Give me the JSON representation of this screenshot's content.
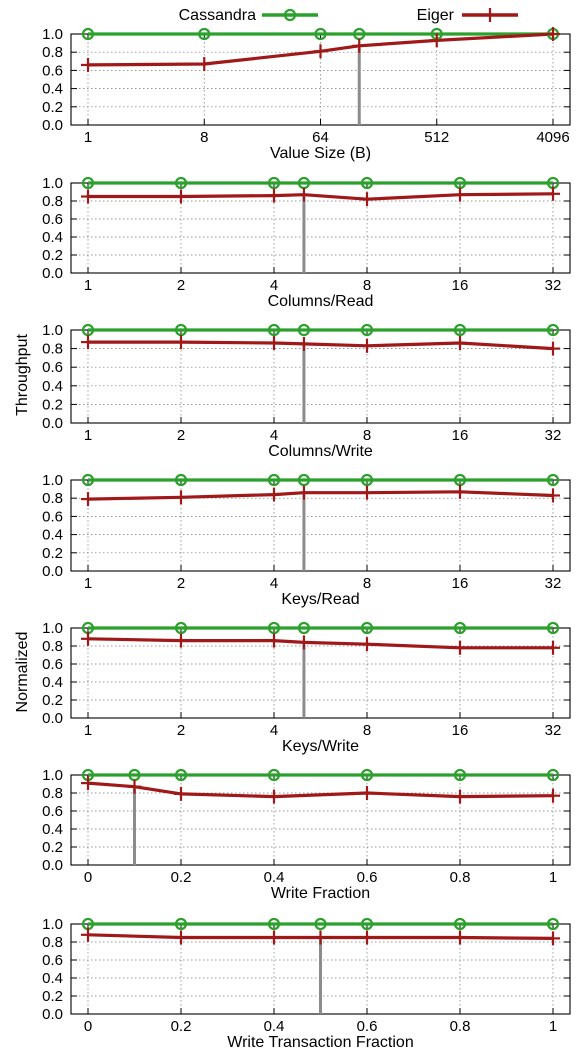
{
  "legend": {
    "cassandra": "Cassandra",
    "eiger": "Eiger"
  },
  "ylabel_parts": [
    "Normalized",
    "Throughput"
  ],
  "colors": {
    "cassandra": "#2ca02c",
    "eiger": "#a01818",
    "marker_line": "#8c8c8c"
  },
  "chart_data": [
    {
      "type": "line",
      "xscale": "log2",
      "xlabel": "Value Size (B)",
      "x": [
        1,
        8,
        64,
        128,
        512,
        4096
      ],
      "xticks": [
        "1",
        "8",
        "64",
        "512",
        "4096"
      ],
      "xtick_values": [
        1,
        8,
        64,
        512,
        4096
      ],
      "xlim": [
        1,
        4096
      ],
      "ylim": [
        0,
        1
      ],
      "yticks": [
        "0.0",
        "0.2",
        "0.4",
        "0.6",
        "0.8",
        "1.0"
      ],
      "grid": true,
      "series": [
        {
          "name": "Cassandra",
          "values": [
            1.0,
            1.0,
            1.0,
            1.0,
            1.0,
            1.0
          ]
        },
        {
          "name": "Eiger",
          "values": [
            0.66,
            0.67,
            0.81,
            0.87,
            0.93,
            1.0
          ]
        }
      ],
      "vline": 128
    },
    {
      "type": "line",
      "xscale": "log2",
      "xlabel": "Columns/Read",
      "x": [
        1,
        2,
        4,
        5,
        8,
        16,
        32
      ],
      "xticks": [
        "1",
        "2",
        "4",
        "8",
        "16",
        "32"
      ],
      "xtick_values": [
        1,
        2,
        4,
        8,
        16,
        32
      ],
      "xlim": [
        1,
        32
      ],
      "ylim": [
        0,
        1
      ],
      "yticks": [
        "0.0",
        "0.2",
        "0.4",
        "0.6",
        "0.8",
        "1.0"
      ],
      "grid": true,
      "series": [
        {
          "name": "Cassandra",
          "values": [
            1.0,
            1.0,
            1.0,
            1.0,
            1.0,
            1.0,
            1.0
          ]
        },
        {
          "name": "Eiger",
          "values": [
            0.85,
            0.85,
            0.86,
            0.87,
            0.82,
            0.87,
            0.88
          ]
        }
      ],
      "vline": 5
    },
    {
      "type": "line",
      "xscale": "log2",
      "xlabel": "Columns/Write",
      "x": [
        1,
        2,
        4,
        5,
        8,
        16,
        32
      ],
      "xticks": [
        "1",
        "2",
        "4",
        "8",
        "16",
        "32"
      ],
      "xtick_values": [
        1,
        2,
        4,
        8,
        16,
        32
      ],
      "xlim": [
        1,
        32
      ],
      "ylim": [
        0,
        1
      ],
      "yticks": [
        "0.0",
        "0.2",
        "0.4",
        "0.6",
        "0.8",
        "1.0"
      ],
      "grid": true,
      "series": [
        {
          "name": "Cassandra",
          "values": [
            1.0,
            1.0,
            1.0,
            1.0,
            1.0,
            1.0,
            1.0
          ]
        },
        {
          "name": "Eiger",
          "values": [
            0.87,
            0.87,
            0.86,
            0.85,
            0.83,
            0.86,
            0.8
          ]
        }
      ],
      "vline": 5
    },
    {
      "type": "line",
      "xscale": "log2",
      "xlabel": "Keys/Read",
      "x": [
        1,
        2,
        4,
        5,
        8,
        16,
        32
      ],
      "xticks": [
        "1",
        "2",
        "4",
        "8",
        "16",
        "32"
      ],
      "xtick_values": [
        1,
        2,
        4,
        8,
        16,
        32
      ],
      "xlim": [
        1,
        32
      ],
      "ylim": [
        0,
        1
      ],
      "yticks": [
        "0.0",
        "0.2",
        "0.4",
        "0.6",
        "0.8",
        "1.0"
      ],
      "grid": true,
      "series": [
        {
          "name": "Cassandra",
          "values": [
            1.0,
            1.0,
            1.0,
            1.0,
            1.0,
            1.0,
            1.0
          ]
        },
        {
          "name": "Eiger",
          "values": [
            0.79,
            0.81,
            0.84,
            0.86,
            0.86,
            0.87,
            0.83
          ]
        }
      ],
      "vline": 5
    },
    {
      "type": "line",
      "xscale": "log2",
      "xlabel": "Keys/Write",
      "x": [
        1,
        2,
        4,
        5,
        8,
        16,
        32
      ],
      "xticks": [
        "1",
        "2",
        "4",
        "8",
        "16",
        "32"
      ],
      "xtick_values": [
        1,
        2,
        4,
        8,
        16,
        32
      ],
      "xlim": [
        1,
        32
      ],
      "ylim": [
        0,
        1
      ],
      "yticks": [
        "0.0",
        "0.2",
        "0.4",
        "0.6",
        "0.8",
        "1.0"
      ],
      "grid": true,
      "series": [
        {
          "name": "Cassandra",
          "values": [
            1.0,
            1.0,
            1.0,
            1.0,
            1.0,
            1.0,
            1.0
          ]
        },
        {
          "name": "Eiger",
          "values": [
            0.88,
            0.86,
            0.86,
            0.84,
            0.82,
            0.78,
            0.78
          ]
        }
      ],
      "vline": 5
    },
    {
      "type": "line",
      "xscale": "linear",
      "xlabel": "Write Fraction",
      "x": [
        0,
        0.1,
        0.2,
        0.4,
        0.6,
        0.8,
        1.0
      ],
      "xticks": [
        "0",
        "0.2",
        "0.4",
        "0.6",
        "0.8",
        "1"
      ],
      "xtick_values": [
        0,
        0.2,
        0.4,
        0.6,
        0.8,
        1.0
      ],
      "xlim": [
        0,
        1
      ],
      "ylim": [
        0,
        1
      ],
      "yticks": [
        "0.0",
        "0.2",
        "0.4",
        "0.6",
        "0.8",
        "1.0"
      ],
      "grid": true,
      "series": [
        {
          "name": "Cassandra",
          "values": [
            1.0,
            1.0,
            1.0,
            1.0,
            1.0,
            1.0,
            1.0
          ]
        },
        {
          "name": "Eiger",
          "values": [
            0.91,
            0.87,
            0.79,
            0.76,
            0.8,
            0.76,
            0.77
          ]
        }
      ],
      "vline": 0.1
    },
    {
      "type": "line",
      "xscale": "linear",
      "xlabel": "Write Transaction Fraction",
      "x": [
        0,
        0.2,
        0.4,
        0.5,
        0.6,
        0.8,
        1.0
      ],
      "xticks": [
        "0",
        "0.2",
        "0.4",
        "0.6",
        "0.8",
        "1"
      ],
      "xtick_values": [
        0,
        0.2,
        0.4,
        0.6,
        0.8,
        1.0
      ],
      "xlim": [
        0,
        1
      ],
      "ylim": [
        0,
        1
      ],
      "yticks": [
        "0.0",
        "0.2",
        "0.4",
        "0.6",
        "0.8",
        "1.0"
      ],
      "grid": true,
      "series": [
        {
          "name": "Cassandra",
          "values": [
            1.0,
            1.0,
            1.0,
            1.0,
            1.0,
            1.0,
            1.0
          ]
        },
        {
          "name": "Eiger",
          "values": [
            0.88,
            0.85,
            0.85,
            0.85,
            0.85,
            0.85,
            0.84
          ]
        }
      ],
      "vline": 0.5
    }
  ]
}
